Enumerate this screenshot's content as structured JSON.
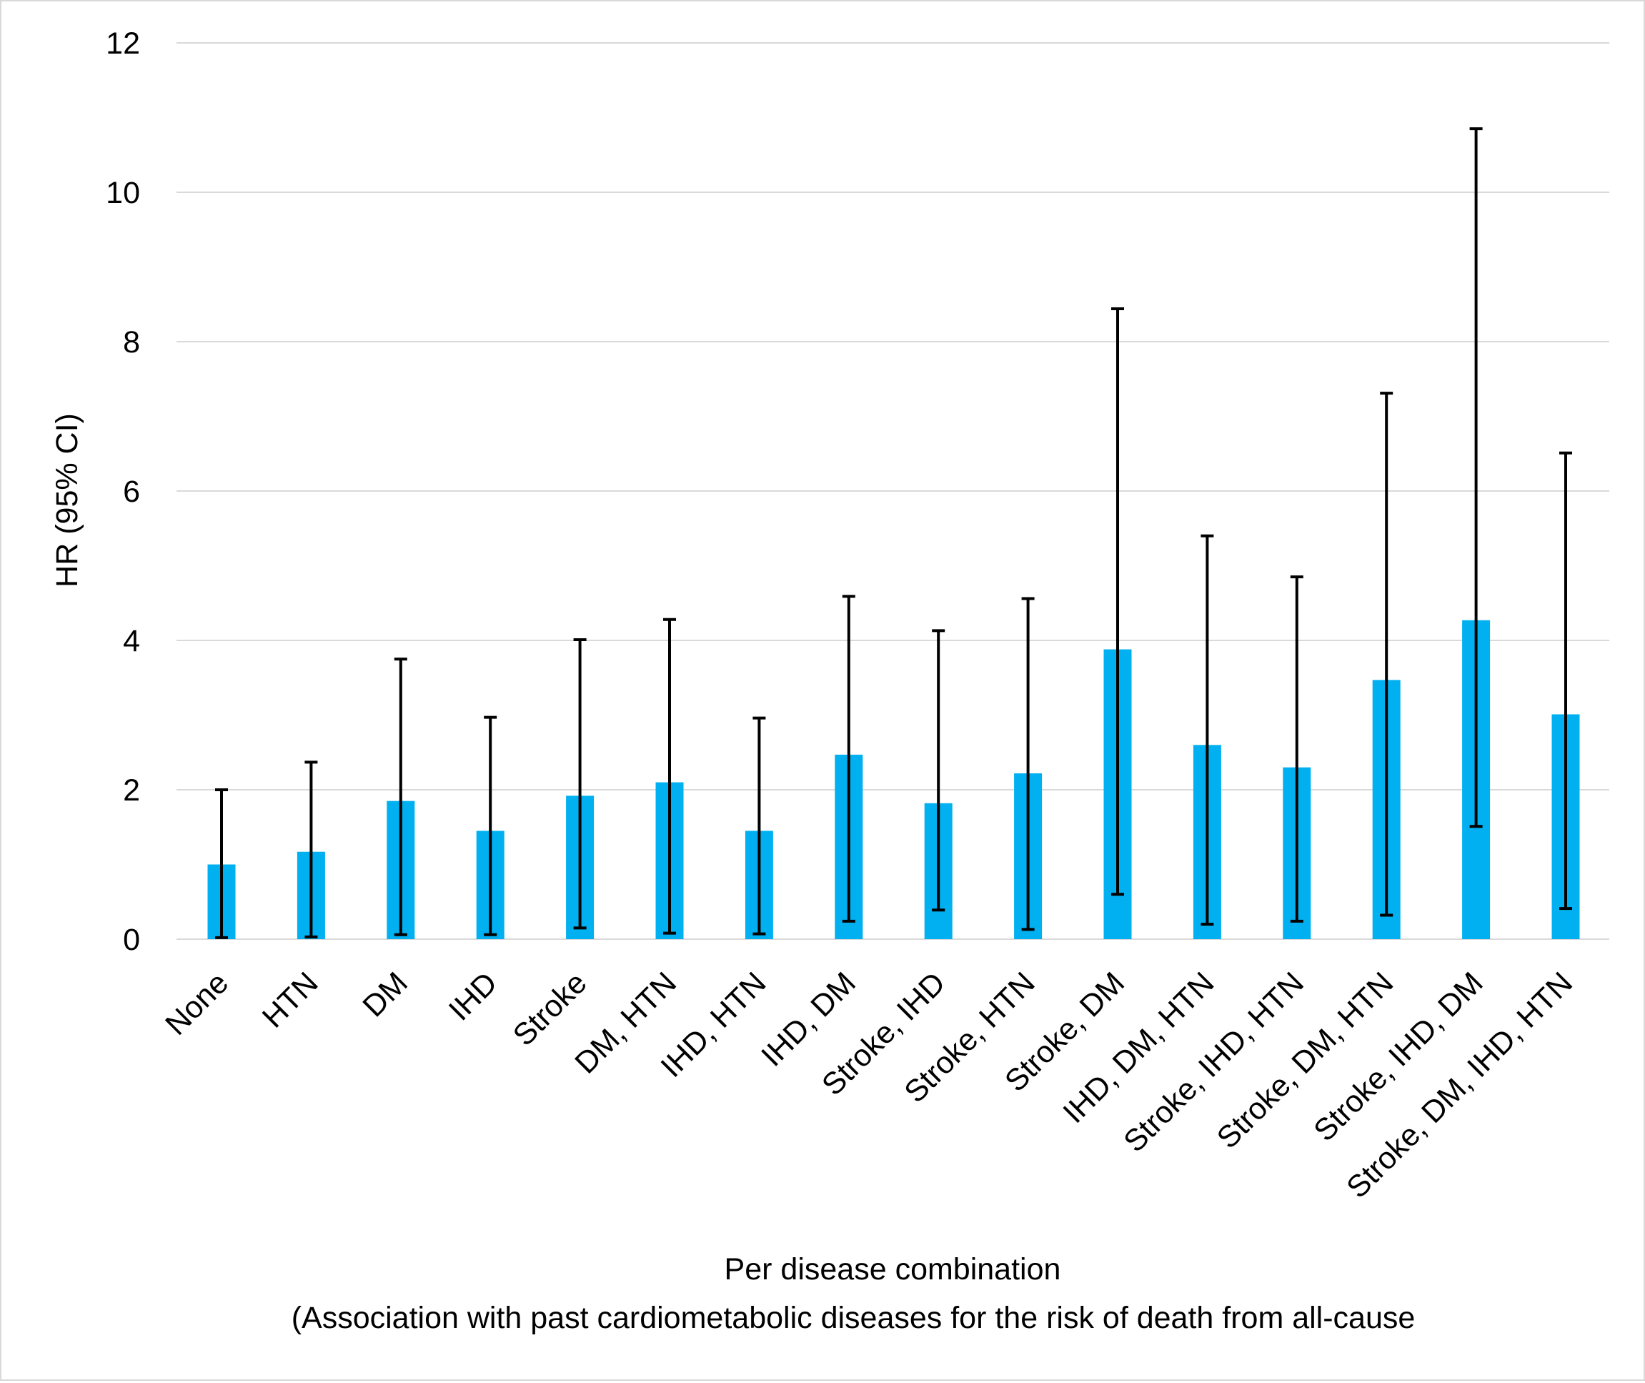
{
  "chart_data": {
    "type": "bar",
    "title": "",
    "xlabel_lines": [
      "Per disease combination",
      "(Association with past cardiometabolic diseases for the risk of death from all-cause"
    ],
    "ylabel": "HR (95% CI)",
    "ylim": [
      0,
      12
    ],
    "yticks": [
      0,
      2,
      4,
      6,
      8,
      10,
      12
    ],
    "grid": true,
    "legend": "none",
    "bar_color": "#00B0F0",
    "errorbar_color": "#000000",
    "gridline_color": "#d9d9d9",
    "categories": [
      "None",
      "HTN",
      "DM",
      "IHD",
      "Stroke",
      "DM, HTN",
      "IHD, HTN",
      "IHD, DM",
      "Stroke, IHD",
      "Stroke, HTN",
      "Stroke, DM",
      "IHD, DM, HTN",
      "Stroke, IHD, HTN",
      "Stroke, DM, HTN",
      "Stroke, IHD, DM",
      "Stroke, DM, IHD, HTN"
    ],
    "values": [
      1.0,
      1.17,
      1.85,
      1.45,
      1.92,
      2.1,
      1.45,
      2.47,
      1.82,
      2.22,
      3.88,
      2.6,
      2.3,
      3.47,
      4.27,
      3.01
    ],
    "ci_lower": [
      0.02,
      0.03,
      0.06,
      0.06,
      0.15,
      0.08,
      0.07,
      0.24,
      0.39,
      0.13,
      0.6,
      0.2,
      0.24,
      0.32,
      1.51,
      0.41
    ],
    "ci_upper": [
      2.0,
      2.37,
      3.75,
      2.97,
      4.01,
      4.28,
      2.96,
      4.59,
      4.13,
      4.56,
      8.44,
      5.4,
      4.85,
      7.31,
      10.85,
      6.51
    ]
  }
}
